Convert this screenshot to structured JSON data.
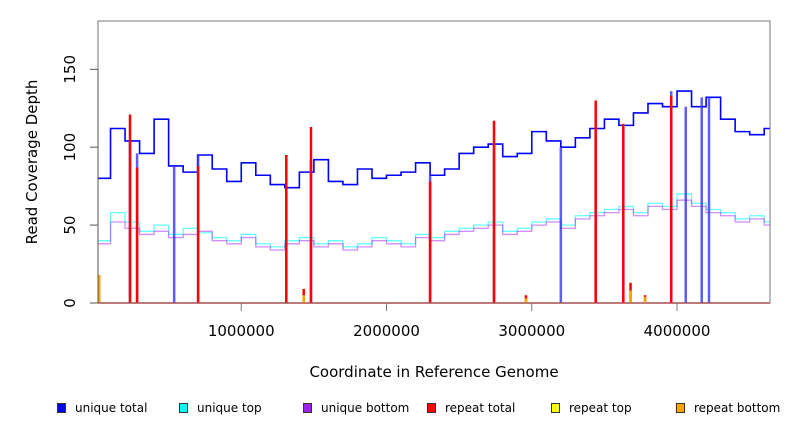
{
  "chart_data": {
    "type": "line",
    "xlabel": "Coordinate in Reference Genome",
    "ylabel": "Read Coverage Depth",
    "xlim": [
      0,
      4640000
    ],
    "ylim": [
      0,
      181
    ],
    "xticks": [
      1000000,
      2000000,
      3000000,
      4000000
    ],
    "xtick_labels": [
      "1000000",
      "2000000",
      "3000000",
      "4000000"
    ],
    "yticks": [
      0,
      50,
      100,
      150
    ],
    "ytick_labels": [
      "0",
      "50",
      "100",
      "150"
    ],
    "legend_position": "bottom",
    "x": [
      0,
      100000,
      200000,
      300000,
      400000,
      500000,
      600000,
      700000,
      800000,
      900000,
      1000000,
      1100000,
      1200000,
      1300000,
      1400000,
      1500000,
      1600000,
      1700000,
      1800000,
      1900000,
      2000000,
      2100000,
      2200000,
      2300000,
      2400000,
      2500000,
      2600000,
      2700000,
      2800000,
      2900000,
      3000000,
      3100000,
      3200000,
      3300000,
      3400000,
      3500000,
      3600000,
      3700000,
      3800000,
      3900000,
      4000000,
      4100000,
      4200000,
      4300000,
      4400000,
      4500000,
      4600000
    ],
    "series": [
      {
        "name": "unique total",
        "color": "#0000ff",
        "values": [
          80,
          112,
          104,
          96,
          118,
          88,
          84,
          95,
          86,
          78,
          90,
          82,
          76,
          74,
          84,
          92,
          78,
          76,
          86,
          80,
          82,
          84,
          90,
          82,
          86,
          96,
          100,
          102,
          94,
          96,
          110,
          104,
          100,
          106,
          112,
          118,
          114,
          122,
          128,
          126,
          136,
          126,
          132,
          118,
          110,
          108,
          112
        ]
      },
      {
        "name": "unique top",
        "color": "#00ffff",
        "values": [
          40,
          58,
          52,
          46,
          50,
          44,
          48,
          45,
          42,
          40,
          44,
          38,
          36,
          40,
          42,
          38,
          40,
          36,
          38,
          42,
          40,
          38,
          44,
          42,
          46,
          48,
          50,
          52,
          46,
          48,
          52,
          54,
          50,
          56,
          58,
          60,
          62,
          58,
          64,
          62,
          70,
          64,
          60,
          58,
          54,
          56,
          52
        ]
      },
      {
        "name": "unique bottom",
        "color": "#a020f0",
        "values": [
          38,
          52,
          48,
          44,
          46,
          42,
          44,
          46,
          40,
          38,
          42,
          36,
          34,
          38,
          40,
          36,
          38,
          34,
          36,
          40,
          38,
          36,
          42,
          40,
          44,
          46,
          48,
          50,
          44,
          46,
          50,
          52,
          48,
          54,
          56,
          58,
          60,
          56,
          62,
          60,
          66,
          62,
          58,
          56,
          52,
          54,
          50
        ]
      },
      {
        "name": "repeat total",
        "color": "#ff0000",
        "values": [
          0,
          0,
          0,
          0,
          0,
          0,
          0,
          0,
          0,
          0,
          0,
          0,
          0,
          0,
          0,
          0,
          0,
          0,
          0,
          0,
          0,
          0,
          0,
          0,
          0,
          0,
          0,
          0,
          0,
          0,
          0,
          0,
          0,
          0,
          0,
          0,
          0,
          0,
          0,
          0,
          0,
          0,
          0,
          0,
          0,
          0,
          0
        ]
      },
      {
        "name": "repeat top",
        "color": "#ffff00",
        "values": [
          0,
          0,
          0,
          0,
          0,
          0,
          0,
          0,
          0,
          0,
          0,
          0,
          0,
          0,
          0,
          0,
          0,
          0,
          0,
          0,
          0,
          0,
          0,
          0,
          0,
          0,
          0,
          0,
          0,
          0,
          0,
          0,
          0,
          0,
          0,
          0,
          0,
          0,
          0,
          0,
          0,
          0,
          0,
          0,
          0,
          0,
          0
        ]
      },
      {
        "name": "repeat bottom",
        "color": "#ffa500",
        "values": [
          0,
          0,
          0,
          0,
          0,
          0,
          0,
          0,
          0,
          0,
          0,
          0,
          0,
          0,
          0,
          0,
          0,
          0,
          0,
          0,
          0,
          0,
          0,
          0,
          0,
          0,
          0,
          0,
          0,
          0,
          0,
          0,
          0,
          0,
          0,
          0,
          0,
          0,
          0,
          0,
          0,
          0,
          0,
          0,
          0,
          0,
          0
        ]
      }
    ],
    "unique_dropouts_to_zero": [
      234000,
      283000,
      538000,
      703000,
      1310000,
      1480000,
      2300000,
      2740000,
      3200000,
      3440000,
      3630000,
      3960000,
      4060000,
      4170000,
      4220000
    ],
    "repeat_spikes": [
      {
        "x": 10000,
        "total": 18,
        "bottom": 18
      },
      {
        "x": 234000,
        "total": 121,
        "bottom": 0
      },
      {
        "x": 283000,
        "total": 87,
        "bottom": 0
      },
      {
        "x": 703000,
        "total": 88,
        "bottom": 0
      },
      {
        "x": 1310000,
        "total": 95,
        "bottom": 0
      },
      {
        "x": 1430000,
        "total": 9,
        "bottom": 5
      },
      {
        "x": 1480000,
        "total": 113,
        "bottom": 0
      },
      {
        "x": 2300000,
        "total": 78,
        "bottom": 0
      },
      {
        "x": 2740000,
        "total": 117,
        "bottom": 0
      },
      {
        "x": 2960000,
        "total": 5,
        "bottom": 3
      },
      {
        "x": 3440000,
        "total": 130,
        "bottom": 0
      },
      {
        "x": 3630000,
        "total": 115,
        "bottom": 0
      },
      {
        "x": 3680000,
        "total": 13,
        "bottom": 8
      },
      {
        "x": 3780000,
        "total": 5,
        "bottom": 4
      },
      {
        "x": 3960000,
        "total": 133,
        "bottom": 0
      }
    ]
  },
  "legend": [
    "unique total",
    "unique top",
    "unique bottom",
    "repeat total",
    "repeat top",
    "repeat bottom"
  ]
}
